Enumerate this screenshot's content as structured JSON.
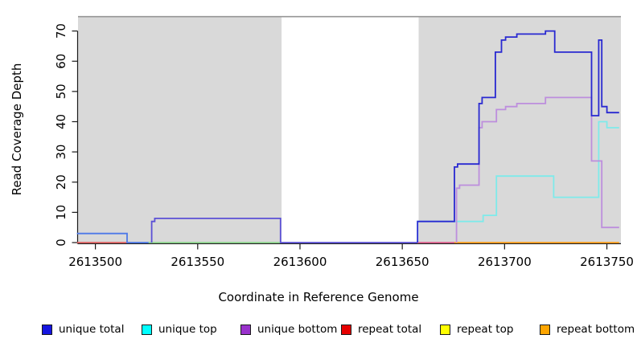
{
  "chart_data": {
    "type": "line",
    "subtype": "step-coverage-plot",
    "title": "",
    "xlabel": "Coordinate in Reference Genome",
    "ylabel": "Read Coverage Depth",
    "xlim": [
      2613491,
      2613757
    ],
    "ylim": [
      0,
      75
    ],
    "xticks": [
      2613500,
      2613550,
      2613600,
      2613650,
      2613700,
      2613750
    ],
    "yticks": [
      0,
      10,
      20,
      30,
      40,
      50,
      60,
      70
    ],
    "grid": "off",
    "panel_bg": "#d9d9d9",
    "panel_top_line_color": "#969696",
    "no_data_band_x": [
      2613591,
      2613658
    ],
    "series": [
      {
        "name": "repeat-total-left-zero",
        "legend": "repeat total",
        "color": "#e06262",
        "path": [
          [
            2613491,
            0
          ]
        ],
        "end": 2613517
      },
      {
        "name": "unique-total-left",
        "legend": "unique total",
        "color": "#4d79e8",
        "path": [
          [
            2613491,
            3
          ],
          [
            2613515.5,
            0
          ]
        ],
        "end": 2613527.5
      },
      {
        "name": "top-strands-overlap-zero",
        "legend": "unique top + repeat top",
        "color": "#8fd88f",
        "path": [
          [
            2613526,
            0
          ]
        ],
        "end": 2613591
      },
      {
        "name": "unique-total-bottom-overlap-mid",
        "legend": "unique total + unique bottom",
        "color": "#5b50d6",
        "path": [
          [
            2613527.5,
            0
          ],
          [
            2613527.5,
            7
          ],
          [
            2613529,
            8
          ],
          [
            2613590.5,
            0
          ]
        ],
        "end": 2613657.5
      },
      {
        "name": "total-bottom-overlap-zero-pink",
        "legend": "repeat total + unique bottom",
        "color": "#df5f8d",
        "path": [
          [
            2613657.5,
            0
          ]
        ],
        "end": 2613675.5
      },
      {
        "name": "repeat-bottom",
        "legend": "repeat bottom",
        "color": "#ff9f1a",
        "path": [
          [
            2613675.5,
            0
          ]
        ],
        "end": 2613756
      },
      {
        "name": "unique-top",
        "legend": "unique top",
        "color": "#7eeaea",
        "path": [
          [
            2613657.5,
            0
          ],
          [
            2613657.5,
            7
          ],
          [
            2613689.5,
            9
          ],
          [
            2613696,
            22
          ],
          [
            2613724,
            15
          ],
          [
            2613746,
            40
          ],
          [
            2613750,
            38
          ]
        ],
        "end": 2613756
      },
      {
        "name": "unique-bottom",
        "legend": "unique bottom",
        "color": "#bd8edd",
        "path": [
          [
            2613676.5,
            0
          ],
          [
            2613676.5,
            18
          ],
          [
            2613678,
            19
          ],
          [
            2613687.5,
            38
          ],
          [
            2613689,
            40
          ],
          [
            2613696,
            44
          ],
          [
            2613700.5,
            45
          ],
          [
            2613706,
            46
          ],
          [
            2613720,
            48
          ],
          [
            2613742.5,
            27
          ],
          [
            2613747.5,
            5
          ]
        ],
        "end": 2613756
      },
      {
        "name": "unique-total",
        "legend": "unique total",
        "color": "#2929d1",
        "path": [
          [
            2613657.5,
            0
          ],
          [
            2613657.5,
            7
          ],
          [
            2613675.5,
            25
          ],
          [
            2613677,
            26
          ],
          [
            2613687.5,
            46
          ],
          [
            2613689,
            48
          ],
          [
            2613695.5,
            63
          ],
          [
            2613698.5,
            67
          ],
          [
            2613700.5,
            68
          ],
          [
            2613706,
            69
          ],
          [
            2613720,
            70
          ],
          [
            2613724.5,
            63
          ],
          [
            2613742.5,
            42
          ],
          [
            2613746,
            67
          ],
          [
            2613747.5,
            45
          ],
          [
            2613750,
            43
          ]
        ],
        "end": 2613756
      }
    ],
    "legend": {
      "position": "bottom",
      "items": [
        {
          "label": "unique total",
          "color": "#1515e0"
        },
        {
          "label": "unique top",
          "color": "#00ffff"
        },
        {
          "label": "unique bottom",
          "color": "#9932cc"
        },
        {
          "label": "repeat total",
          "color": "#e60000"
        },
        {
          "label": "repeat top",
          "color": "#ffff00"
        },
        {
          "label": "repeat bottom",
          "color": "#ffa500"
        }
      ]
    }
  }
}
